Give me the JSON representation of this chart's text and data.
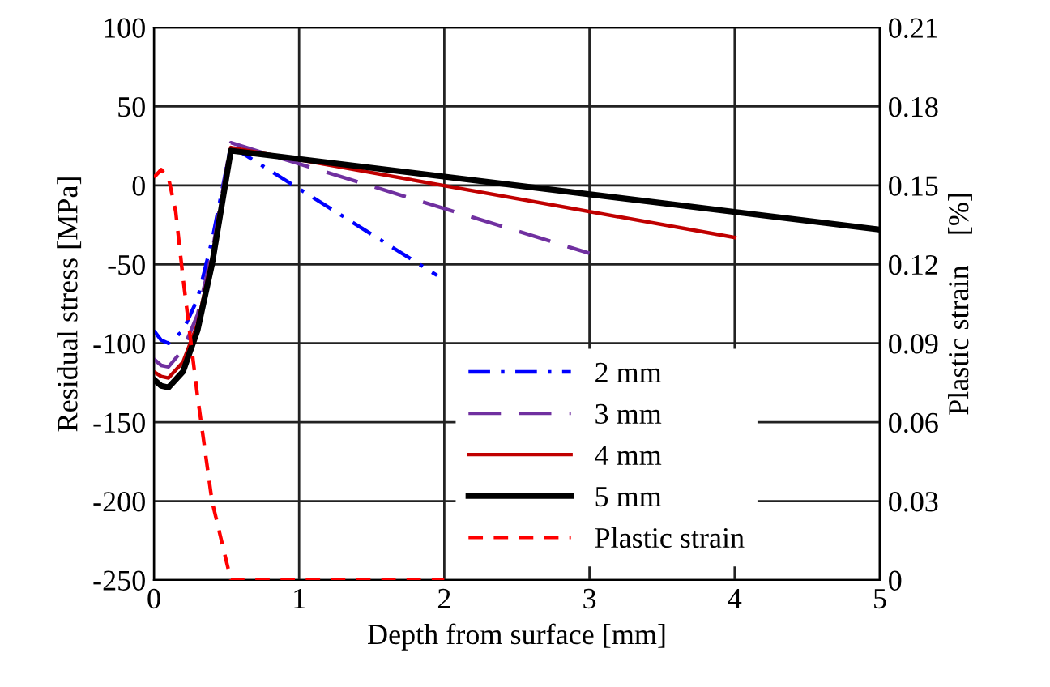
{
  "chart_data": {
    "type": "line",
    "xlabel": "Depth from surface [mm]",
    "ylabel": "Residual stress [MPa]",
    "y2label": "Plastic strain    [%]",
    "xlim": [
      0,
      5
    ],
    "xticks": [
      0,
      1,
      2,
      3,
      4,
      5
    ],
    "ylim": [
      -250,
      100
    ],
    "yticks": [
      -250,
      -200,
      -150,
      -100,
      -50,
      0,
      50,
      100
    ],
    "y2lim": [
      0,
      0.21
    ],
    "y2ticks": [
      {
        "value": 0,
        "label": "0"
      },
      {
        "value": 0.03,
        "label": "0.03"
      },
      {
        "value": 0.06,
        "label": "0.06"
      },
      {
        "value": 0.09,
        "label": "0.09"
      },
      {
        "value": 0.12,
        "label": "0.12"
      },
      {
        "value": 0.15,
        "label": "0.15"
      },
      {
        "value": 0.18,
        "label": "0.18"
      },
      {
        "value": 0.21,
        "label": "0.21"
      }
    ],
    "grid": true,
    "legend": "bottom right",
    "marker": "none",
    "series": [
      {
        "name": "2 mm",
        "color": "#0000ff",
        "line_style": "dashdot",
        "x": [
          0,
          0.05,
          0.1,
          0.2,
          0.3,
          0.4,
          0.53,
          1.95
        ],
        "values": [
          -92,
          -98,
          -100,
          -92,
          -72,
          -35,
          25,
          -57
        ]
      },
      {
        "name": "3 mm",
        "color": "#7030a0",
        "line_style": "longdash",
        "x": [
          0,
          0.05,
          0.1,
          0.2,
          0.3,
          0.4,
          0.53,
          3
        ],
        "values": [
          -110,
          -114,
          -115,
          -104,
          -82,
          -43,
          27,
          -43
        ]
      },
      {
        "name": "4 mm",
        "color": "#c00000",
        "line_style": "solid",
        "x": [
          0,
          0.05,
          0.1,
          0.2,
          0.3,
          0.4,
          0.53,
          4
        ],
        "values": [
          -118,
          -121,
          -122,
          -112,
          -88,
          -47,
          24,
          -33
        ]
      },
      {
        "name": "5 mm",
        "color": "#000000",
        "line_style": "solid",
        "x": [
          0,
          0.05,
          0.1,
          0.2,
          0.3,
          0.4,
          0.53,
          5
        ],
        "values": [
          -123,
          -127,
          -128,
          -118,
          -92,
          -50,
          22,
          -28
        ]
      },
      {
        "name": "Plastic strain",
        "color": "#ff0000",
        "line_style": "dashed",
        "axis": "y2",
        "x": [
          0,
          0.05,
          0.1,
          0.15,
          0.2,
          0.3,
          0.4,
          0.53,
          2
        ],
        "values": [
          0.153,
          0.156,
          0.153,
          0.14,
          0.115,
          0.07,
          0.03,
          0,
          0
        ]
      }
    ]
  }
}
